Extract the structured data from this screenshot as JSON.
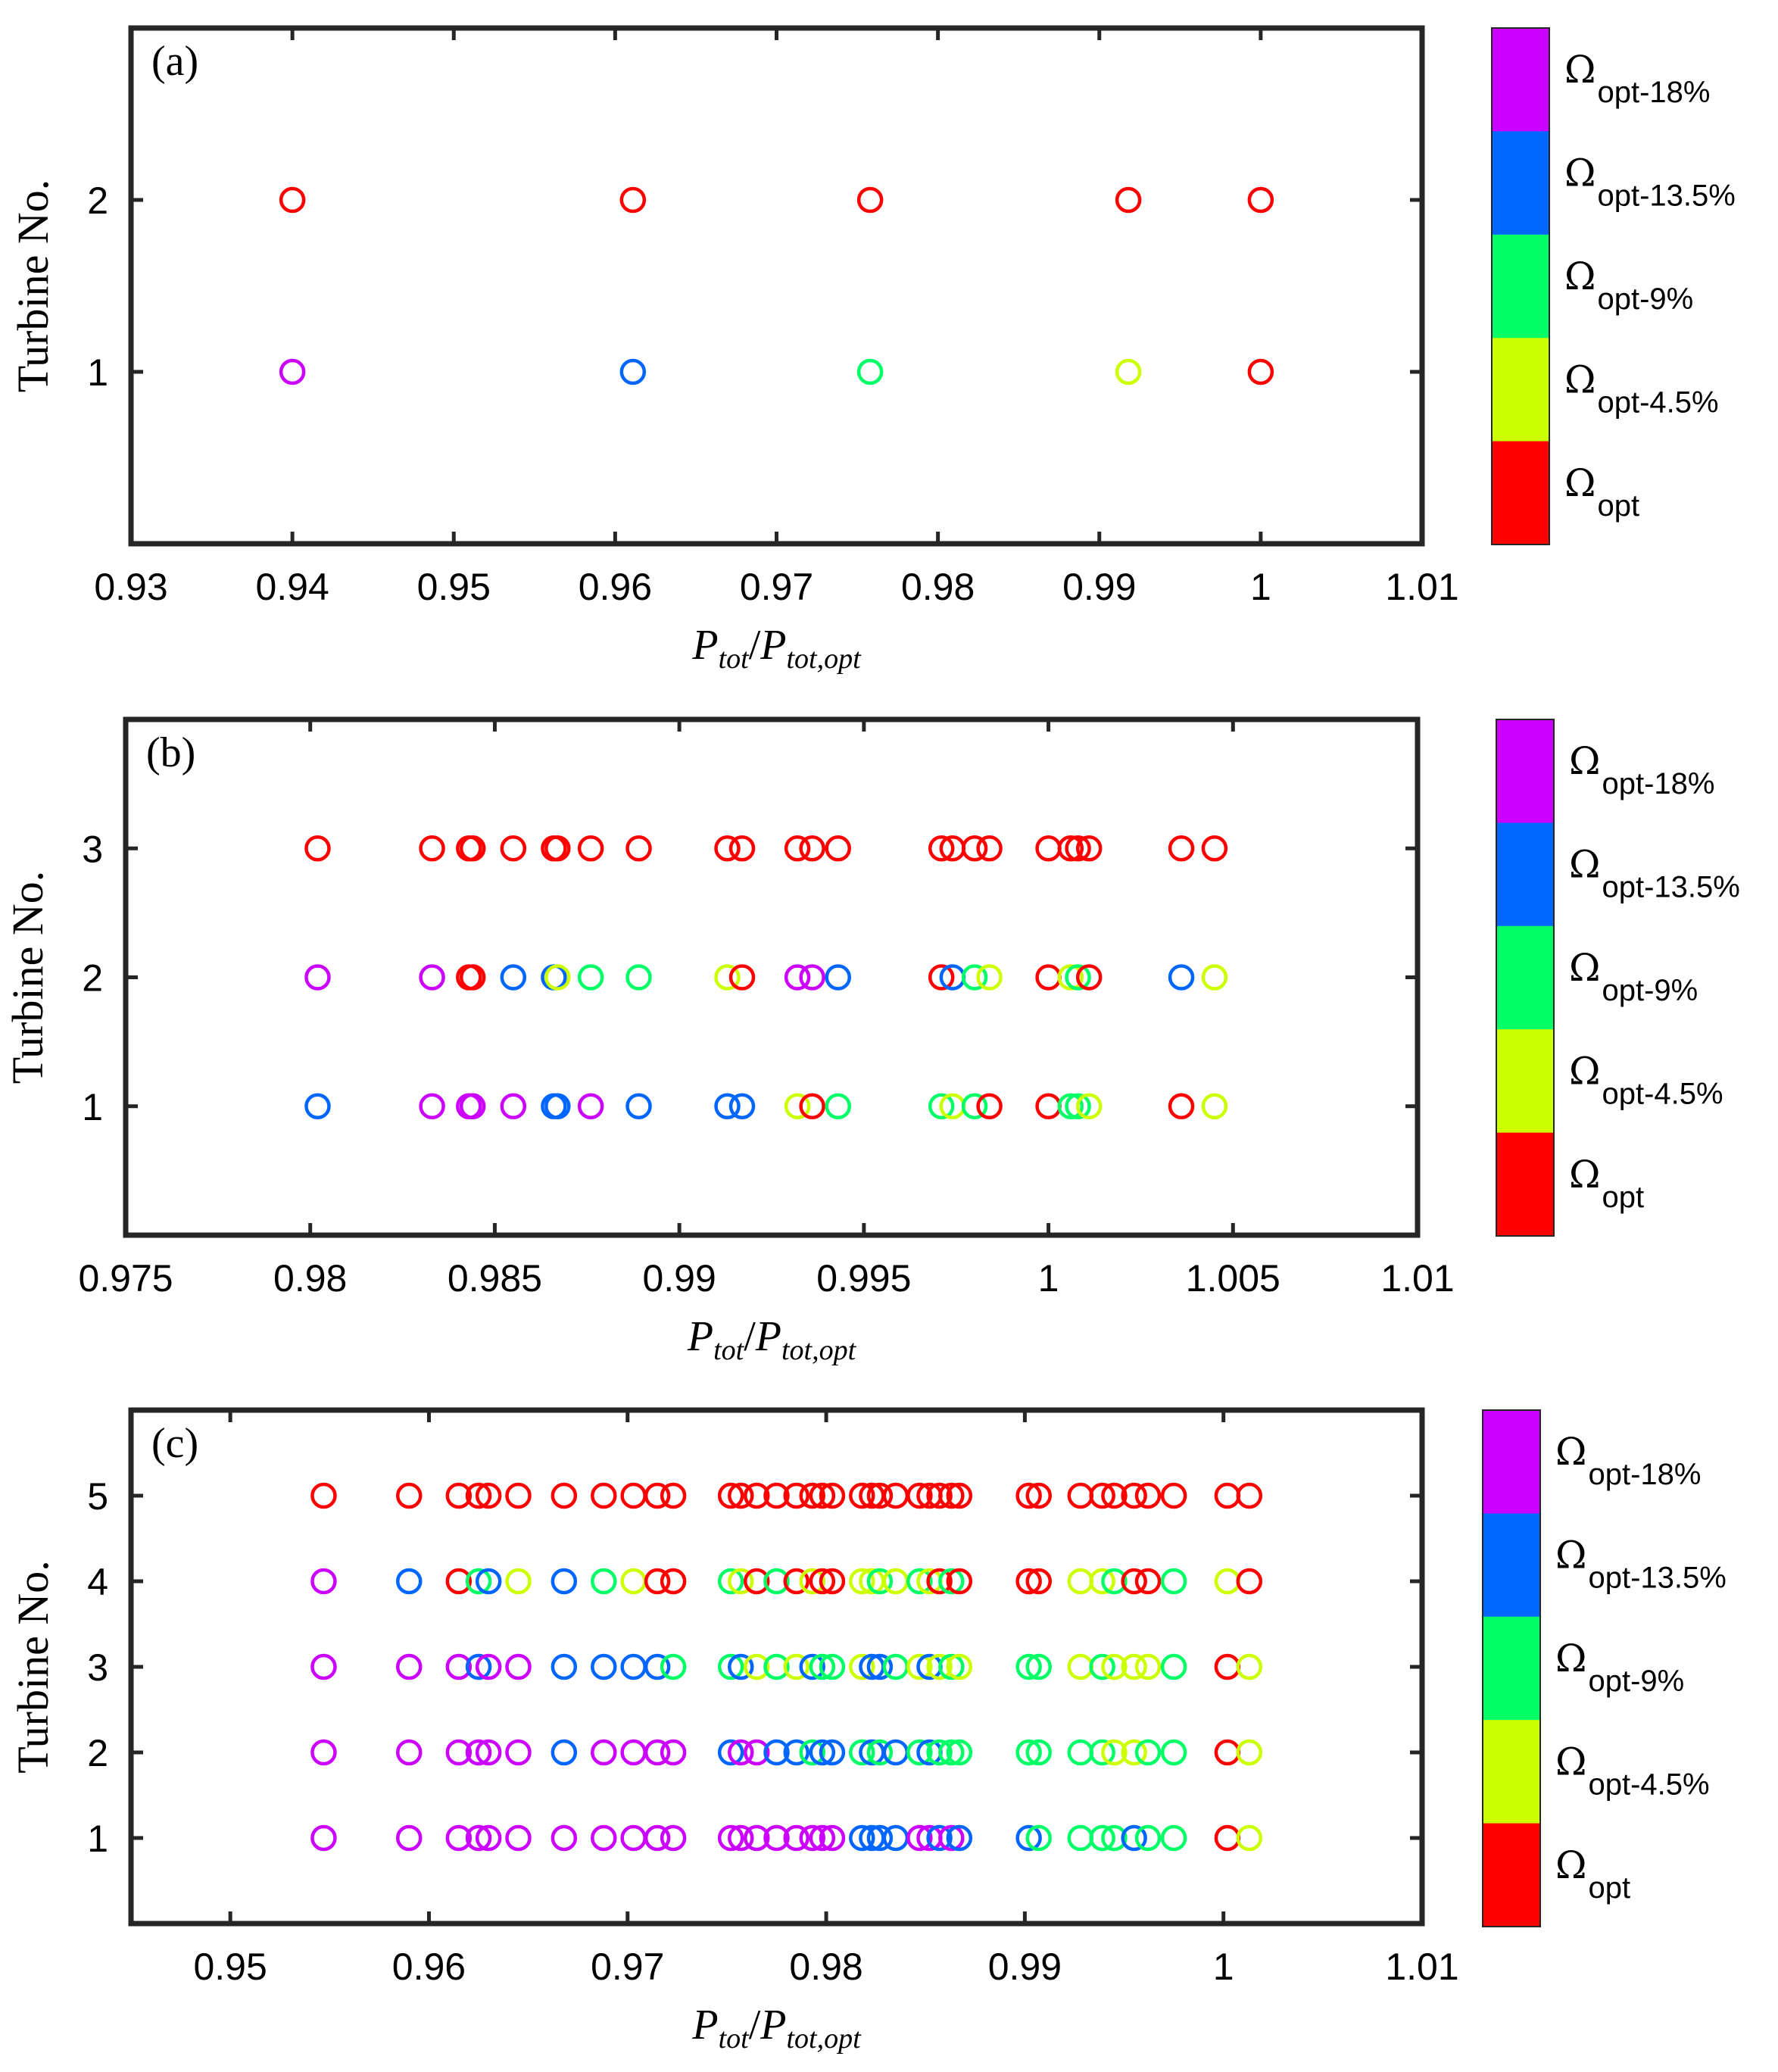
{
  "colors": {
    "opt": "#ff0000",
    "opt_4_5": "#ccff00",
    "opt_9": "#00ff66",
    "opt_13_5": "#0066ff",
    "opt_18": "#cc00ff"
  },
  "colorbar_labels": [
    {
      "key": "opt_18",
      "omega": "Ω",
      "sub": "opt-18%"
    },
    {
      "key": "opt_13_5",
      "omega": "Ω",
      "sub": "opt-13.5%"
    },
    {
      "key": "opt_9",
      "omega": "Ω",
      "sub": "opt-9%"
    },
    {
      "key": "opt_4_5",
      "omega": "Ω",
      "sub": "opt-4.5%"
    },
    {
      "key": "opt",
      "omega": "Ω",
      "sub": "opt"
    }
  ],
  "xlabel": {
    "main": "P",
    "sub": "tot",
    "sep": "/",
    "main2": "P",
    "sub2": "tot,opt"
  },
  "ylabel": "Turbine No.",
  "chart_data": [
    {
      "type": "scatter",
      "panel": "(a)",
      "xlim": [
        0.93,
        1.01
      ],
      "ylim": [
        0,
        3
      ],
      "xticks": [
        0.93,
        0.94,
        0.95,
        0.96,
        0.97,
        0.98,
        0.99,
        1,
        1.01
      ],
      "xtick_labels": [
        "0.93",
        "0.94",
        "0.95",
        "0.96",
        "0.97",
        "0.98",
        "0.99",
        "1",
        "1.01"
      ],
      "yticks": [
        1,
        2
      ],
      "ytick_labels": [
        "1",
        "2"
      ],
      "x": [
        0.94,
        0.9611,
        0.9758,
        0.9918,
        1.0
      ],
      "turbines": [
        [
          "opt_18",
          "opt"
        ],
        [
          "opt_13_5",
          "opt"
        ],
        [
          "opt_9",
          "opt"
        ],
        [
          "opt_4_5",
          "opt"
        ],
        [
          "opt",
          "opt"
        ]
      ]
    },
    {
      "type": "scatter",
      "panel": "(b)",
      "xlim": [
        0.975,
        1.01
      ],
      "ylim": [
        0,
        4
      ],
      "xticks": [
        0.975,
        0.98,
        0.985,
        0.99,
        0.995,
        1,
        1.005,
        1.01
      ],
      "xtick_labels": [
        "0.975",
        "0.98",
        "0.985",
        "0.99",
        "0.995",
        "1",
        "1.005",
        "1.01"
      ],
      "yticks": [
        1,
        2,
        3
      ],
      "ytick_labels": [
        "1",
        "2",
        "3"
      ],
      "x": [
        0.9802,
        0.9833,
        0.9843,
        0.9844,
        0.9855,
        0.9866,
        0.9867,
        0.9876,
        0.9889,
        0.9913,
        0.9917,
        0.9932,
        0.9936,
        0.9943,
        0.9971,
        0.9974,
        0.998,
        0.9984,
        1.0,
        1.0006,
        1.0008,
        1.0011,
        1.0036,
        1.0045
      ],
      "turbines": [
        [
          "opt_13_5",
          "opt_18",
          "opt"
        ],
        [
          "opt_18",
          "opt_18",
          "opt"
        ],
        [
          "opt_18",
          "opt",
          "opt"
        ],
        [
          "opt_18",
          "opt",
          "opt"
        ],
        [
          "opt_18",
          "opt_13_5",
          "opt"
        ],
        [
          "opt_13_5",
          "opt_13_5",
          "opt"
        ],
        [
          "opt_13_5",
          "opt_4_5",
          "opt"
        ],
        [
          "opt_18",
          "opt_9",
          "opt"
        ],
        [
          "opt_13_5",
          "opt_9",
          "opt"
        ],
        [
          "opt_13_5",
          "opt_4_5",
          "opt"
        ],
        [
          "opt_13_5",
          "opt",
          "opt"
        ],
        [
          "opt_4_5",
          "opt_18",
          "opt"
        ],
        [
          "opt",
          "opt_18",
          "opt"
        ],
        [
          "opt_9",
          "opt_13_5",
          "opt"
        ],
        [
          "opt_9",
          "opt",
          "opt"
        ],
        [
          "opt_4_5",
          "opt_13_5",
          "opt"
        ],
        [
          "opt_9",
          "opt_9",
          "opt"
        ],
        [
          "opt",
          "opt_4_5",
          "opt"
        ],
        [
          "opt",
          "opt",
          "opt"
        ],
        [
          "opt_9",
          "opt_4_5",
          "opt"
        ],
        [
          "opt_9",
          "opt_9",
          "opt"
        ],
        [
          "opt_4_5",
          "opt",
          "opt"
        ],
        [
          "opt",
          "opt_13_5",
          "opt"
        ],
        [
          "opt_4_5",
          "opt_4_5",
          "opt"
        ]
      ]
    },
    {
      "type": "scatter",
      "panel": "(c)",
      "xlim": [
        0.945,
        1.01
      ],
      "ylim": [
        0,
        6
      ],
      "xticks": [
        0.95,
        0.96,
        0.97,
        0.98,
        0.99,
        1,
        1.01
      ],
      "xtick_labels": [
        "0.95",
        "0.96",
        "0.97",
        "0.98",
        "0.99",
        "1",
        "1.01"
      ],
      "yticks": [
        1,
        2,
        3,
        4,
        5
      ],
      "ytick_labels": [
        "1",
        "2",
        "3",
        "4",
        "5"
      ],
      "x": [
        0.9547,
        0.959,
        0.9615,
        0.9625,
        0.963,
        0.9645,
        0.9668,
        0.9688,
        0.9703,
        0.9715,
        0.9723,
        0.9752,
        0.9757,
        0.9765,
        0.9775,
        0.9785,
        0.9793,
        0.9798,
        0.9803,
        0.9818,
        0.9823,
        0.9827,
        0.9835,
        0.9847,
        0.9852,
        0.9857,
        0.9863,
        0.9867,
        0.9902,
        0.9907,
        0.9928,
        0.9939,
        0.9945,
        0.9955,
        0.9962,
        0.9975,
        1.0002,
        1.0013
      ],
      "turbines": [
        [
          "opt_18",
          "opt_18",
          "opt_18",
          "opt_18",
          "opt"
        ],
        [
          "opt_18",
          "opt_18",
          "opt_18",
          "opt_13_5",
          "opt"
        ],
        [
          "opt_18",
          "opt_18",
          "opt_18",
          "opt",
          "opt"
        ],
        [
          "opt_18",
          "opt_18",
          "opt_13_5",
          "opt_9",
          "opt"
        ],
        [
          "opt_18",
          "opt_18",
          "opt_18",
          "opt_13_5",
          "opt"
        ],
        [
          "opt_18",
          "opt_18",
          "opt_18",
          "opt_4_5",
          "opt"
        ],
        [
          "opt_18",
          "opt_13_5",
          "opt_13_5",
          "opt_13_5",
          "opt"
        ],
        [
          "opt_18",
          "opt_18",
          "opt_13_5",
          "opt_9",
          "opt"
        ],
        [
          "opt_18",
          "opt_18",
          "opt_13_5",
          "opt_4_5",
          "opt"
        ],
        [
          "opt_18",
          "opt_18",
          "opt_13_5",
          "opt",
          "opt"
        ],
        [
          "opt_18",
          "opt_18",
          "opt_9",
          "opt",
          "opt"
        ],
        [
          "opt_18",
          "opt_13_5",
          "opt_9",
          "opt_9",
          "opt"
        ],
        [
          "opt_18",
          "opt_18",
          "opt_13_5",
          "opt_4_5",
          "opt"
        ],
        [
          "opt_18",
          "opt_18",
          "opt_4_5",
          "opt",
          "opt"
        ],
        [
          "opt_18",
          "opt_13_5",
          "opt_9",
          "opt_9",
          "opt"
        ],
        [
          "opt_18",
          "opt_13_5",
          "opt_4_5",
          "opt",
          "opt"
        ],
        [
          "opt_18",
          "opt_9",
          "opt_13_5",
          "opt_4_5",
          "opt"
        ],
        [
          "opt_18",
          "opt_13_5",
          "opt_9",
          "opt",
          "opt"
        ],
        [
          "opt_18",
          "opt_13_5",
          "opt_9",
          "opt",
          "opt"
        ],
        [
          "opt_13_5",
          "opt_9",
          "opt_4_5",
          "opt_4_5",
          "opt"
        ],
        [
          "opt_13_5",
          "opt_13_5",
          "opt_13_5",
          "opt_4_5",
          "opt"
        ],
        [
          "opt_13_5",
          "opt_9",
          "opt_13_5",
          "opt_9",
          "opt"
        ],
        [
          "opt_13_5",
          "opt_13_5",
          "opt_9",
          "opt_4_5",
          "opt"
        ],
        [
          "opt_18",
          "opt_9",
          "opt_4_5",
          "opt_9",
          "opt"
        ],
        [
          "opt_18",
          "opt_13_5",
          "opt_13_5",
          "opt_4_5",
          "opt"
        ],
        [
          "opt_13_5",
          "opt_9",
          "opt_4_5",
          "opt",
          "opt"
        ],
        [
          "opt_18",
          "opt_9",
          "opt_9",
          "opt_9",
          "opt"
        ],
        [
          "opt_13_5",
          "opt_9",
          "opt_4_5",
          "opt",
          "opt"
        ],
        [
          "opt_13_5",
          "opt_9",
          "opt_9",
          "opt",
          "opt"
        ],
        [
          "opt_9",
          "opt_9",
          "opt_9",
          "opt",
          "opt"
        ],
        [
          "opt_9",
          "opt_9",
          "opt_4_5",
          "opt_4_5",
          "opt"
        ],
        [
          "opt_9",
          "opt_9",
          "opt_9",
          "opt_4_5",
          "opt"
        ],
        [
          "opt_9",
          "opt_4_5",
          "opt_4_5",
          "opt_9",
          "opt"
        ],
        [
          "opt_13_5",
          "opt_4_5",
          "opt_4_5",
          "opt",
          "opt"
        ],
        [
          "opt_9",
          "opt_9",
          "opt_4_5",
          "opt",
          "opt"
        ],
        [
          "opt_9",
          "opt_9",
          "opt_9",
          "opt_9",
          "opt"
        ],
        [
          "opt",
          "opt",
          "opt",
          "opt_4_5",
          "opt"
        ],
        [
          "opt_4_5",
          "opt_4_5",
          "opt_4_5",
          "opt",
          "opt"
        ]
      ]
    }
  ]
}
